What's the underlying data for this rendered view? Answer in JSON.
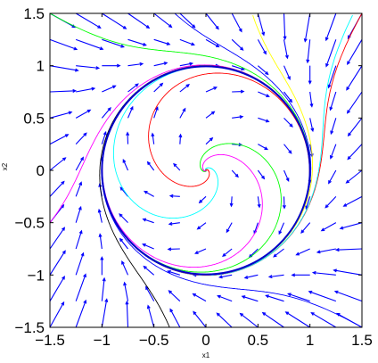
{
  "chart_data": {
    "type": "phase-portrait",
    "title": "",
    "xlabel": "x1",
    "ylabel": "x2",
    "xlim": [
      -1.5,
      1.5
    ],
    "ylim": [
      -1.5,
      1.5
    ],
    "xticks": [
      -1.5,
      -1,
      -0.5,
      0,
      0.5,
      1,
      1.5
    ],
    "xtick_labels": [
      "−1.5",
      "−1",
      "−0.5",
      "0",
      "0.5",
      "1",
      "1.5"
    ],
    "yticks": [
      -1.5,
      -1,
      -0.5,
      0,
      0.5,
      1,
      1.5
    ],
    "ytick_labels": [
      "−1.5",
      "−1",
      "−0.5",
      "0",
      "0.5",
      "1",
      "1.5"
    ],
    "grid": false,
    "legend": "none",
    "limit_cycle": {
      "center": [
        0,
        0
      ],
      "radius": 1.0,
      "color": "#0000cc"
    },
    "vector_field": {
      "color": "#0000ff",
      "system": "dx1 = x2 + x1*(1 - x1^2 - x2^2); dx2 = -x1 + x2*(1 - x1^2 - x2^2)",
      "grid_min": -1.5,
      "grid_max": 1.5,
      "grid_n": 13
    },
    "trajectories": [
      {
        "color": "#0000ff",
        "start": [
          -0.3,
          1.5
        ]
      },
      {
        "color": "#ff0000",
        "start": [
          1.5,
          1.5
        ]
      },
      {
        "color": "#ffff00",
        "start": [
          0.8,
          0.8
        ]
      },
      {
        "color": "#ff00ff",
        "start": [
          -1.5,
          -0.5
        ]
      },
      {
        "color": "#0000ff",
        "start": [
          1.5,
          -1.5
        ]
      },
      {
        "color": "#000000",
        "start": [
          -0.35,
          -1.5
        ]
      },
      {
        "color": "#00ff00",
        "start": [
          -1.5,
          1.5
        ]
      },
      {
        "color": "#00ffff",
        "start": [
          1.1,
          0.1
        ]
      },
      {
        "color": "#00ff00",
        "start": [
          0.3,
          0.25
        ]
      },
      {
        "color": "#00ffff",
        "start": [
          0.1,
          -0.2
        ]
      },
      {
        "color": "#ff00ff",
        "start": [
          0.15,
          0.15
        ]
      },
      {
        "color": "#ff0000",
        "start": [
          -0.1,
          -0.15
        ]
      }
    ]
  }
}
